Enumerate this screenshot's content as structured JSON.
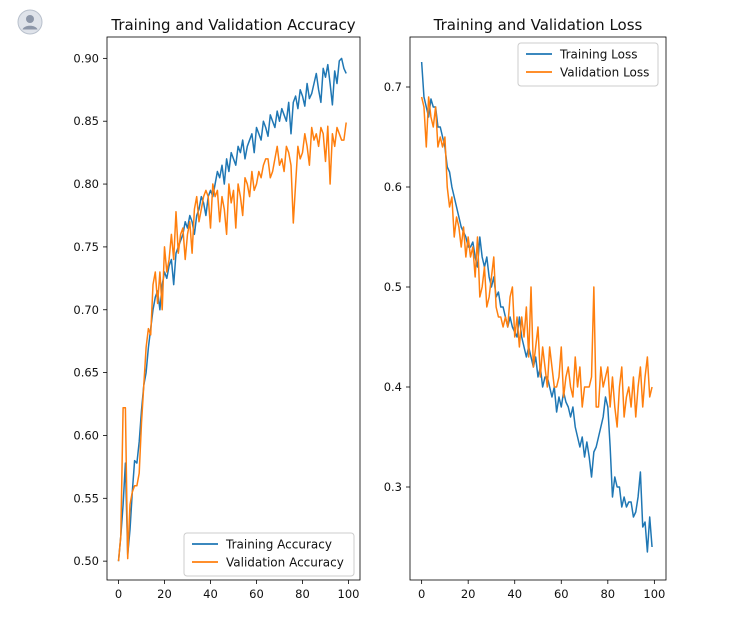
{
  "chart_data": [
    {
      "type": "line",
      "title": "Training and Validation Accuracy",
      "xlabel": "",
      "ylabel": "",
      "xlim": [
        -5,
        105
      ],
      "ylim": [
        0.485,
        0.917
      ],
      "xticks": [
        0,
        20,
        40,
        60,
        80,
        100
      ],
      "yticks": [
        0.5,
        0.55,
        0.6,
        0.65,
        0.7,
        0.75,
        0.8,
        0.85,
        0.9
      ],
      "ytick_labels": [
        "0.50",
        "0.55",
        "0.60",
        "0.65",
        "0.70",
        "0.75",
        "0.80",
        "0.85",
        "0.90"
      ],
      "legend_position": "lower-right",
      "series": [
        {
          "name": "Training Accuracy",
          "color": "#1f77b4",
          "values": [
            0.5,
            0.52,
            0.545,
            0.578,
            0.505,
            0.525,
            0.555,
            0.58,
            0.578,
            0.595,
            0.62,
            0.64,
            0.65,
            0.67,
            0.685,
            0.7,
            0.71,
            0.715,
            0.7,
            0.72,
            0.73,
            0.725,
            0.735,
            0.74,
            0.72,
            0.745,
            0.75,
            0.755,
            0.76,
            0.77,
            0.765,
            0.775,
            0.77,
            0.76,
            0.775,
            0.78,
            0.79,
            0.785,
            0.775,
            0.79,
            0.795,
            0.79,
            0.8,
            0.81,
            0.805,
            0.815,
            0.8,
            0.82,
            0.81,
            0.825,
            0.82,
            0.815,
            0.83,
            0.825,
            0.835,
            0.82,
            0.83,
            0.835,
            0.84,
            0.825,
            0.845,
            0.84,
            0.835,
            0.85,
            0.845,
            0.838,
            0.855,
            0.85,
            0.845,
            0.858,
            0.85,
            0.86,
            0.855,
            0.85,
            0.865,
            0.84,
            0.865,
            0.87,
            0.86,
            0.875,
            0.87,
            0.862,
            0.88,
            0.868,
            0.872,
            0.88,
            0.888,
            0.875,
            0.865,
            0.892,
            0.885,
            0.895,
            0.88,
            0.863,
            0.89,
            0.88,
            0.898,
            0.9,
            0.892,
            0.888
          ]
        },
        {
          "name": "Validation Accuracy",
          "color": "#ff7f0e",
          "values": [
            0.5,
            0.52,
            0.622,
            0.622,
            0.502,
            0.545,
            0.555,
            0.56,
            0.56,
            0.57,
            0.61,
            0.64,
            0.67,
            0.685,
            0.68,
            0.72,
            0.73,
            0.705,
            0.73,
            0.7,
            0.75,
            0.73,
            0.74,
            0.76,
            0.74,
            0.778,
            0.745,
            0.76,
            0.765,
            0.74,
            0.76,
            0.77,
            0.745,
            0.78,
            0.79,
            0.77,
            0.78,
            0.79,
            0.795,
            0.79,
            0.765,
            0.8,
            0.79,
            0.795,
            0.77,
            0.79,
            0.78,
            0.76,
            0.8,
            0.785,
            0.795,
            0.765,
            0.8,
            0.79,
            0.775,
            0.805,
            0.8,
            0.79,
            0.81,
            0.795,
            0.8,
            0.81,
            0.805,
            0.815,
            0.82,
            0.82,
            0.805,
            0.81,
            0.82,
            0.83,
            0.815,
            0.82,
            0.81,
            0.83,
            0.825,
            0.815,
            0.769,
            0.8,
            0.83,
            0.82,
            0.825,
            0.84,
            0.83,
            0.815,
            0.845,
            0.835,
            0.84,
            0.83,
            0.845,
            0.84,
            0.818,
            0.846,
            0.8,
            0.84,
            0.83,
            0.845,
            0.84,
            0.835,
            0.835,
            0.849
          ]
        }
      ]
    },
    {
      "type": "line",
      "title": "Training and Validation Loss",
      "xlabel": "",
      "ylabel": "",
      "xlim": [
        -5,
        105
      ],
      "ylim": [
        0.207,
        0.75
      ],
      "xticks": [
        0,
        20,
        40,
        60,
        80,
        100
      ],
      "yticks": [
        0.3,
        0.4,
        0.5,
        0.6,
        0.7
      ],
      "ytick_labels": [
        "0.3",
        "0.4",
        "0.5",
        "0.6",
        "0.7"
      ],
      "legend_position": "top-right",
      "series": [
        {
          "name": "Training Loss",
          "color": "#1f77b4",
          "values": [
            0.725,
            0.69,
            0.68,
            0.67,
            0.688,
            0.68,
            0.68,
            0.66,
            0.66,
            0.65,
            0.64,
            0.62,
            0.615,
            0.6,
            0.59,
            0.58,
            0.57,
            0.56,
            0.555,
            0.55,
            0.54,
            0.54,
            0.545,
            0.53,
            0.52,
            0.55,
            0.53,
            0.52,
            0.53,
            0.51,
            0.5,
            0.51,
            0.49,
            0.495,
            0.48,
            0.48,
            0.47,
            0.46,
            0.47,
            0.46,
            0.455,
            0.45,
            0.47,
            0.45,
            0.44,
            0.43,
            0.44,
            0.43,
            0.42,
            0.43,
            0.41,
            0.42,
            0.4,
            0.41,
            0.41,
            0.4,
            0.39,
            0.4,
            0.375,
            0.39,
            0.38,
            0.395,
            0.385,
            0.38,
            0.37,
            0.38,
            0.36,
            0.35,
            0.34,
            0.35,
            0.33,
            0.345,
            0.33,
            0.31,
            0.335,
            0.34,
            0.35,
            0.36,
            0.37,
            0.39,
            0.38,
            0.34,
            0.29,
            0.31,
            0.3,
            0.3,
            0.28,
            0.29,
            0.28,
            0.285,
            0.285,
            0.27,
            0.275,
            0.29,
            0.315,
            0.26,
            0.265,
            0.235,
            0.27,
            0.24
          ]
        },
        {
          "name": "Validation Loss",
          "color": "#ff7f0e",
          "values": [
            0.69,
            0.68,
            0.64,
            0.69,
            0.67,
            0.66,
            0.68,
            0.64,
            0.65,
            0.64,
            0.65,
            0.6,
            0.58,
            0.59,
            0.55,
            0.57,
            0.56,
            0.54,
            0.56,
            0.53,
            0.55,
            0.53,
            0.54,
            0.51,
            0.55,
            0.49,
            0.5,
            0.52,
            0.48,
            0.49,
            0.51,
            0.53,
            0.48,
            0.47,
            0.47,
            0.46,
            0.47,
            0.46,
            0.49,
            0.5,
            0.45,
            0.47,
            0.44,
            0.47,
            0.45,
            0.48,
            0.43,
            0.5,
            0.42,
            0.44,
            0.46,
            0.41,
            0.44,
            0.42,
            0.4,
            0.44,
            0.42,
            0.4,
            0.4,
            0.41,
            0.44,
            0.39,
            0.41,
            0.42,
            0.4,
            0.39,
            0.43,
            0.4,
            0.42,
            0.38,
            0.4,
            0.4,
            0.4,
            0.41,
            0.5,
            0.38,
            0.38,
            0.42,
            0.4,
            0.41,
            0.42,
            0.38,
            0.41,
            0.38,
            0.36,
            0.4,
            0.42,
            0.37,
            0.39,
            0.4,
            0.38,
            0.41,
            0.37,
            0.4,
            0.42,
            0.38,
            0.41,
            0.43,
            0.39,
            0.4
          ]
        }
      ]
    }
  ]
}
